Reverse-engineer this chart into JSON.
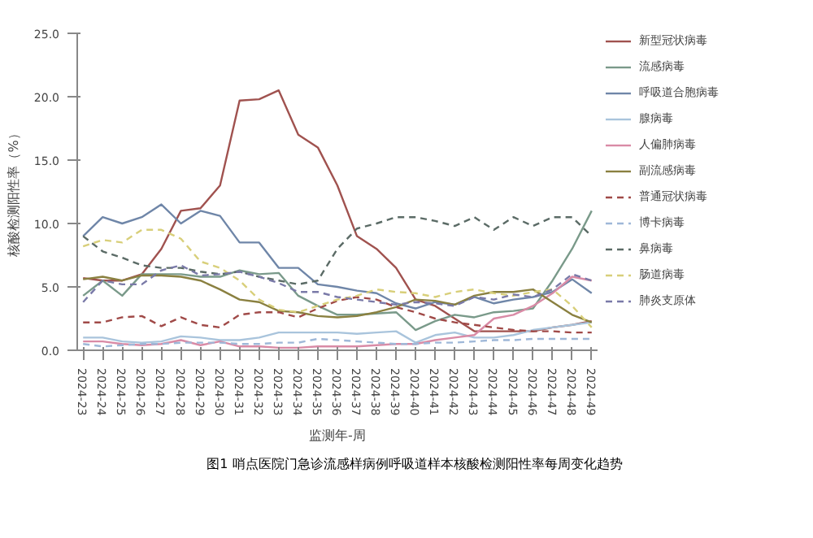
{
  "chart_data": {
    "type": "line",
    "xlabel": "监测年-周",
    "ylabel": "核酸检测阳性率（%）",
    "annotations": [
      "图1 哨点医院门急诊流感样病例呼吸道样本核酸检测阳性率每周变化趋势"
    ],
    "categories": [
      "2024-23",
      "2024-24",
      "2024-25",
      "2024-26",
      "2024-27",
      "2024-28",
      "2024-29",
      "2024-30",
      "2024-31",
      "2024-32",
      "2024-33",
      "2024-34",
      "2024-35",
      "2024-36",
      "2024-37",
      "2024-38",
      "2024-39",
      "2024-40",
      "2024-41",
      "2024-42",
      "2024-43",
      "2024-44",
      "2024-45",
      "2024-46",
      "2024-47",
      "2024-48",
      "2024-49"
    ],
    "ylim": [
      0,
      25
    ],
    "yticks": [
      {
        "value": 0,
        "label": "0.0"
      },
      {
        "value": 5,
        "label": "5.0"
      },
      {
        "value": 10,
        "label": "10.0"
      },
      {
        "value": 15,
        "label": "15.0"
      },
      {
        "value": 20,
        "label": "20.0"
      },
      {
        "value": 25,
        "label": "25.0"
      }
    ],
    "grid": false,
    "legend": "right",
    "marker": "none",
    "series": [
      {
        "name": "新型冠状病毒",
        "color": "#a0524f",
        "line_style": "solid",
        "values": [
          5.7,
          5.5,
          5.5,
          6.0,
          8.0,
          11.0,
          11.2,
          13.0,
          19.7,
          19.8,
          20.5,
          17.0,
          16.0,
          13.0,
          9.0,
          8.0,
          6.5,
          4.0,
          3.5,
          2.5,
          1.5,
          1.5,
          1.5,
          1.5,
          1.8,
          2.0,
          2.3
        ]
      },
      {
        "name": "流感病毒",
        "color": "#7a9a8a",
        "line_style": "solid",
        "values": [
          4.3,
          5.5,
          4.3,
          6.0,
          6.0,
          6.0,
          5.8,
          5.8,
          6.3,
          6.0,
          6.1,
          4.3,
          3.5,
          2.8,
          2.8,
          2.9,
          3.0,
          1.6,
          2.3,
          2.8,
          2.6,
          3.0,
          3.1,
          3.3,
          5.5,
          8.0,
          11.0
        ]
      },
      {
        "name": "呼吸道合胞病毒",
        "color": "#6f86a8",
        "line_style": "solid",
        "values": [
          9.0,
          10.5,
          10.0,
          10.5,
          11.5,
          10.0,
          11.0,
          10.6,
          8.5,
          8.5,
          6.5,
          6.5,
          5.2,
          5.0,
          4.7,
          4.5,
          3.7,
          3.3,
          3.8,
          3.6,
          4.2,
          3.7,
          4.0,
          4.2,
          4.6,
          5.6,
          4.5
        ]
      },
      {
        "name": "腺病毒",
        "color": "#a9c4dc",
        "line_style": "solid",
        "values": [
          1.0,
          1.0,
          0.7,
          0.6,
          0.7,
          1.1,
          1.0,
          0.8,
          0.8,
          1.0,
          1.4,
          1.4,
          1.4,
          1.4,
          1.3,
          1.4,
          1.5,
          0.6,
          1.2,
          1.4,
          1.0,
          1.0,
          1.2,
          1.6,
          1.8,
          2.0,
          2.2
        ]
      },
      {
        "name": "人偏肺病毒",
        "color": "#d98ba6",
        "line_style": "solid",
        "values": [
          0.7,
          0.7,
          0.5,
          0.4,
          0.5,
          0.8,
          0.4,
          0.7,
          0.3,
          0.3,
          0.2,
          0.2,
          0.3,
          0.3,
          0.3,
          0.4,
          0.5,
          0.5,
          0.8,
          1.0,
          1.2,
          2.5,
          2.8,
          3.5,
          4.5,
          5.8,
          5.5
        ]
      },
      {
        "name": "副流感病毒",
        "color": "#8a8040",
        "line_style": "solid",
        "values": [
          5.6,
          5.8,
          5.5,
          5.9,
          5.9,
          5.8,
          5.5,
          4.8,
          4.0,
          3.8,
          3.1,
          3.0,
          2.7,
          2.6,
          2.7,
          3.0,
          3.4,
          4.0,
          3.9,
          3.6,
          4.3,
          4.6,
          4.6,
          4.8,
          3.8,
          2.8,
          2.2
        ]
      },
      {
        "name": "普通冠状病毒",
        "color": "#a04a48",
        "line_style": "dashed",
        "values": [
          2.2,
          2.2,
          2.6,
          2.7,
          1.9,
          2.6,
          2.0,
          1.8,
          2.8,
          3.0,
          3.0,
          2.6,
          3.3,
          3.9,
          4.2,
          4.0,
          3.4,
          3.0,
          2.5,
          2.2,
          2.0,
          1.8,
          1.6,
          1.5,
          1.5,
          1.4,
          1.4
        ]
      },
      {
        "name": "博卡病毒",
        "color": "#9fb8d8",
        "line_style": "dashed",
        "values": [
          0.5,
          0.3,
          0.4,
          0.5,
          0.5,
          0.6,
          0.6,
          0.6,
          0.5,
          0.5,
          0.6,
          0.6,
          0.9,
          0.8,
          0.7,
          0.6,
          0.5,
          0.5,
          0.6,
          0.6,
          0.7,
          0.8,
          0.8,
          0.9,
          0.9,
          0.9,
          0.9
        ]
      },
      {
        "name": "鼻病毒",
        "color": "#5b6b66",
        "line_style": "dashed",
        "values": [
          9.0,
          7.8,
          7.3,
          6.7,
          6.5,
          6.5,
          6.2,
          6.0,
          6.2,
          5.8,
          5.5,
          5.2,
          5.5,
          8.0,
          9.6,
          10.0,
          10.5,
          10.5,
          10.2,
          9.8,
          10.5,
          9.5,
          10.5,
          9.8,
          10.5,
          10.5,
          9.0
        ]
      },
      {
        "name": "肠道病毒",
        "color": "#d8cf7a",
        "line_style": "dashed",
        "values": [
          8.2,
          8.7,
          8.5,
          9.5,
          9.5,
          8.8,
          7.0,
          6.5,
          5.5,
          4.0,
          3.2,
          3.0,
          3.5,
          4.0,
          4.3,
          4.8,
          4.6,
          4.5,
          4.2,
          4.6,
          4.8,
          4.5,
          4.3,
          4.6,
          4.8,
          3.5,
          1.8
        ]
      },
      {
        "name": "肺炎支原体",
        "color": "#7a7aa8",
        "line_style": "dashed",
        "values": [
          3.8,
          5.5,
          5.2,
          5.2,
          6.3,
          6.7,
          5.9,
          6.0,
          6.2,
          5.8,
          5.3,
          4.6,
          4.6,
          4.2,
          4.0,
          3.8,
          3.6,
          3.8,
          3.7,
          3.5,
          4.2,
          4.0,
          4.4,
          4.2,
          4.8,
          6.0,
          5.5
        ]
      }
    ]
  }
}
